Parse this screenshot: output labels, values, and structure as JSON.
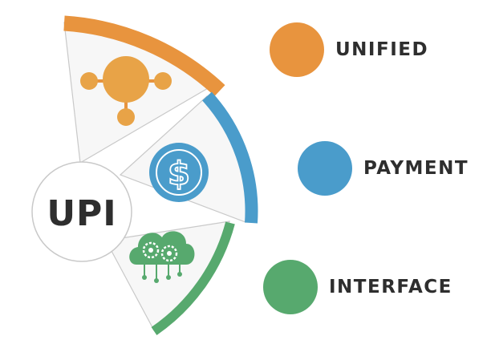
{
  "center_label": "UPI",
  "colors": {
    "orange": "#E8943E",
    "blue": "#4A9CCB",
    "green": "#57A96E",
    "segment_fill": "#F7F7F7",
    "outline": "#C9C9C9",
    "text": "#2E2E2E"
  },
  "segments": [
    {
      "label": "UNIFIED",
      "color": "#E8943E",
      "icon": "network-nodes-icon"
    },
    {
      "label": "PAYMENT",
      "color": "#4A9CCB",
      "icon": "dollar-coin-icon"
    },
    {
      "label": "INTERFACE",
      "color": "#57A96E",
      "icon": "cloud-gears-icon"
    }
  ]
}
